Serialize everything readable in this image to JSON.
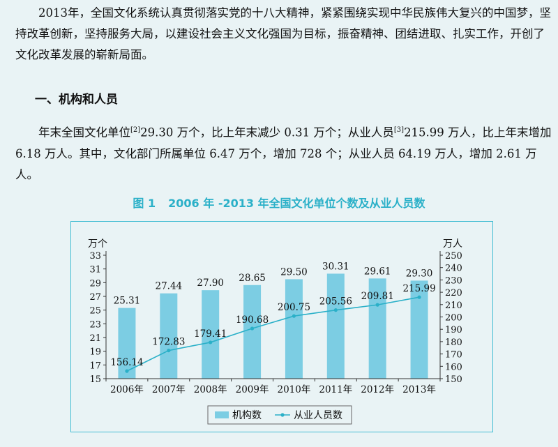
{
  "intro": {
    "paragraph": "2013年，全国文化系统认真贯彻落实党的十八大精神，紧紧围绕实现中华民族伟大复兴的中国梦，坚持改革创新，坚持服务大局，以建设社会主义文化强国为目标，振奋精神、团结进取、扎实工作，开创了文化改革发展的崭新局面。"
  },
  "section": {
    "heading": "一、机构和人员",
    "text_a": "年末全国文化单位",
    "sup_a": "[2]",
    "text_b": "29.30 万个，比上年末减少 0.31 万个；从业人员",
    "sup_b": "[3]",
    "text_c": "215.99 万人，比上年末增加 6.18 万人。其中，文化部门所属单位 6.47 万个，增加 728 个；从业人员 64.19 万人，增加 2.61 万人。"
  },
  "figure": {
    "number": "图 1",
    "title": "2006 年 -2013 年全国文化单位个数及从业人员数"
  },
  "chart_data": {
    "type": "bar+line",
    "categories": [
      "2006年",
      "2007年",
      "2008年",
      "2009年",
      "2010年",
      "2011年",
      "2012年",
      "2013年"
    ],
    "series": [
      {
        "name": "机构数",
        "type": "bar",
        "axis": "left",
        "values": [
          25.31,
          27.44,
          27.9,
          28.65,
          29.5,
          30.31,
          29.61,
          29.3
        ],
        "labels": [
          "25.31",
          "27.44",
          "27.90",
          "28.65",
          "29.50",
          "30.31",
          "29.61",
          "29.30"
        ],
        "color": "#7ccde3"
      },
      {
        "name": "从业人员数",
        "type": "line",
        "axis": "right",
        "values": [
          156.14,
          172.83,
          179.41,
          190.68,
          200.75,
          205.56,
          209.81,
          215.99
        ],
        "labels": [
          "156.14",
          "172.83",
          "179.41",
          "190.68",
          "200.75",
          "205.56",
          "209.81",
          "215.99"
        ],
        "color": "#2ab0c8"
      }
    ],
    "left_axis": {
      "unit": "万个",
      "min": 15,
      "max": 33,
      "ticks": [
        "15",
        "17",
        "19",
        "21",
        "23",
        "25",
        "27",
        "29",
        "31",
        "33"
      ]
    },
    "right_axis": {
      "unit": "万人",
      "min": 150,
      "max": 250,
      "ticks": [
        "150",
        "160",
        "170",
        "180",
        "190",
        "200",
        "210",
        "220",
        "230",
        "240",
        "250"
      ]
    },
    "legend": {
      "position": "bottom",
      "items": [
        "机构数",
        "从业人员数"
      ]
    },
    "grid": false
  }
}
